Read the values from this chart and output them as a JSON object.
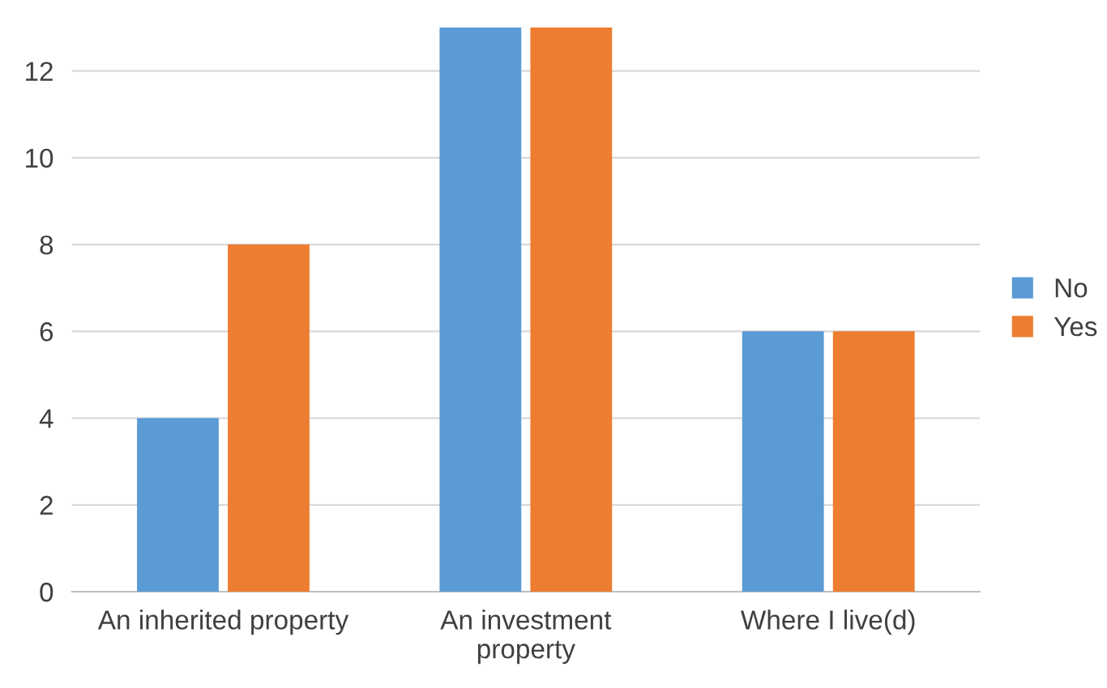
{
  "chart_data": {
    "type": "bar",
    "categories": [
      "An inherited property",
      "An investment\nproperty",
      "Where I live(d)"
    ],
    "series": [
      {
        "name": "No",
        "color": "#5b9bd5",
        "values": [
          4,
          13,
          6
        ]
      },
      {
        "name": "Yes",
        "color": "#ed7d31",
        "values": [
          8,
          13,
          6
        ]
      }
    ],
    "ylim": [
      0,
      13
    ],
    "yticks": [
      0,
      2,
      4,
      6,
      8,
      10,
      12
    ],
    "grid": "y",
    "legend": "right"
  }
}
